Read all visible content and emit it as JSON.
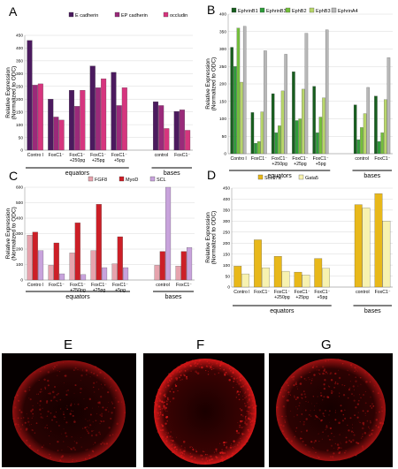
{
  "colors": {
    "ecad": "#4b1a5e",
    "epcad": "#9a2a7a",
    "occludin": "#d6357e",
    "ephrinb1": "#175e1e",
    "ephrinb3": "#2e9c3a",
    "ephb2": "#74bf3c",
    "ephb3": "#b8d66a",
    "ephrina4": "#b8b8b8",
    "fgf8": "#e6a3ad",
    "myod": "#cc1f27",
    "scl": "#c8a3dc",
    "sox17a": "#e8b81a",
    "gata5": "#f7f2b0",
    "fluor": "#d81818"
  },
  "chart_data": [
    {
      "panel": "A",
      "type": "bar",
      "ylabel": "Relative Expression\n(Normalized to ODC)",
      "ylim": [
        0,
        450
      ],
      "yticks": [
        0,
        50,
        100,
        150,
        200,
        250,
        300,
        350,
        400,
        450
      ],
      "legend": [
        "E cadherin",
        "EP cadherin",
        "occludin"
      ],
      "groups": [
        {
          "label": "Contro l",
          "values": [
            430,
            255,
            260
          ]
        },
        {
          "label": "FoxC1⁻",
          "values": [
            200,
            130,
            118
          ]
        },
        {
          "label": "FoxC1⁻\n+250pg",
          "values": [
            235,
            172,
            235
          ]
        },
        {
          "label": "FoxC1⁻\n+25pg",
          "values": [
            330,
            245,
            280
          ]
        },
        {
          "label": "FoxC1⁻\n+5pg",
          "values": [
            305,
            175,
            245
          ]
        },
        {
          "label": "",
          "values": [
            null,
            null,
            null
          ]
        },
        {
          "label": "control",
          "values": [
            190,
            175,
            85
          ]
        },
        {
          "label": "FoxC1⁻",
          "values": [
            152,
            158,
            78
          ]
        }
      ],
      "brackets": [
        {
          "label": "equators",
          "from": 0,
          "to": 4
        },
        {
          "label": "bases",
          "from": 6,
          "to": 7
        }
      ]
    },
    {
      "panel": "B",
      "type": "bar",
      "ylabel": "Relative Expression\n(Normalized to ODC)",
      "ylim": [
        0,
        400
      ],
      "yticks": [
        0,
        50,
        100,
        150,
        200,
        250,
        300,
        350,
        400
      ],
      "legend": [
        "EphrinB1",
        "EphrinB3",
        "EphB2",
        "EphB3",
        "EphrinA4"
      ],
      "groups": [
        {
          "label": "Contro l",
          "values": [
            305,
            250,
            360,
            205,
            365
          ]
        },
        {
          "label": "FoxC1⁻",
          "values": [
            118,
            30,
            35,
            120,
            295
          ]
        },
        {
          "label": "FoxC1⁻\n+250pg",
          "values": [
            172,
            60,
            80,
            180,
            285
          ]
        },
        {
          "label": "FoxC1⁻\n+25pg",
          "values": [
            235,
            95,
            100,
            185,
            345
          ]
        },
        {
          "label": "FoxC1⁻\n+5pg",
          "values": [
            193,
            60,
            105,
            160,
            355
          ]
        },
        {
          "label": "",
          "values": [
            null,
            null,
            null,
            null,
            null
          ]
        },
        {
          "label": "control",
          "values": [
            140,
            40,
            75,
            115,
            190
          ]
        },
        {
          "label": "FoxC1⁻",
          "values": [
            165,
            35,
            60,
            155,
            275
          ]
        }
      ],
      "brackets": [
        {
          "label": "equators",
          "from": 0,
          "to": 4
        },
        {
          "label": "bases",
          "from": 6,
          "to": 7
        }
      ]
    },
    {
      "panel": "C",
      "type": "bar",
      "ylabel": "Relative Expression\n(Normalized to ODC)",
      "ylim": [
        0,
        600
      ],
      "yticks": [
        0,
        100,
        200,
        300,
        400,
        500,
        600
      ],
      "legend": [
        "FGF8",
        "MyoD",
        "SCL"
      ],
      "groups": [
        {
          "label": "Contro l",
          "values": [
            290,
            310,
            190
          ]
        },
        {
          "label": "FoxC1⁻",
          "values": [
            95,
            240,
            40
          ]
        },
        {
          "label": "FoxC1⁻\n+250pg",
          "values": [
            175,
            370,
            35
          ]
        },
        {
          "label": "FoxC1⁻\n+25pg",
          "values": [
            190,
            490,
            80
          ]
        },
        {
          "label": "FoxC1⁻\n+5pg",
          "values": [
            105,
            280,
            80
          ]
        },
        {
          "label": "",
          "values": [
            null,
            null,
            null
          ]
        },
        {
          "label": "control",
          "values": [
            95,
            185,
            600
          ]
        },
        {
          "label": "FoxC1⁻",
          "values": [
            90,
            185,
            210
          ]
        }
      ],
      "brackets": [
        {
          "label": "equators",
          "from": 0,
          "to": 4
        },
        {
          "label": "bases",
          "from": 6,
          "to": 7
        }
      ]
    },
    {
      "panel": "D",
      "type": "bar",
      "ylabel": "Relative Expression\n(Normalized to ODC)",
      "ylim": [
        0,
        450
      ],
      "yticks": [
        0,
        50,
        100,
        150,
        200,
        250,
        300,
        350,
        400,
        450
      ],
      "legend": [
        "Sox17a",
        "Gata5"
      ],
      "groups": [
        {
          "label": "Contro l",
          "values": [
            95,
            60
          ]
        },
        {
          "label": "FoxC1⁻",
          "values": [
            215,
            88
          ]
        },
        {
          "label": "FoxC1⁻\n+250pg",
          "values": [
            140,
            72
          ]
        },
        {
          "label": "FoxC1⁻\n+25pg",
          "values": [
            68,
            55
          ]
        },
        {
          "label": "FoxC1⁻\n+5pg",
          "values": [
            130,
            85
          ]
        },
        {
          "label": "",
          "values": [
            null,
            null
          ]
        },
        {
          "label": "control",
          "values": [
            375,
            360
          ]
        },
        {
          "label": "FoxC1⁻",
          "values": [
            425,
            300
          ]
        }
      ],
      "brackets": [
        {
          "label": "equators",
          "from": 0,
          "to": 4
        },
        {
          "label": "bases",
          "from": 6,
          "to": 7
        }
      ]
    }
  ],
  "micrographs": [
    {
      "label": "E",
      "intensity": 0.35
    },
    {
      "label": "F",
      "intensity": 1.0
    },
    {
      "label": "G",
      "intensity": 0.5
    }
  ]
}
